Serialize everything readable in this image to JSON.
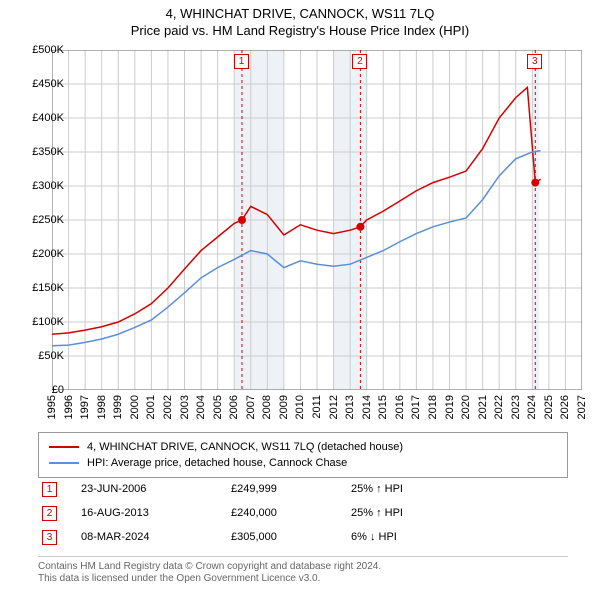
{
  "title_line1": "4, WHINCHAT DRIVE, CANNOCK, WS11 7LQ",
  "title_line2": "Price paid vs. HM Land Registry's House Price Index (HPI)",
  "chart": {
    "type": "line",
    "background_color": "#ffffff",
    "plot_border_color": "#666666",
    "grid_color": "#cccccc",
    "shaded_band_color": "#eef2f7",
    "x_axis": {
      "min_year": 1995,
      "max_year": 2027,
      "ticks": [
        1995,
        1996,
        1997,
        1998,
        1999,
        2000,
        2001,
        2002,
        2003,
        2004,
        2005,
        2006,
        2007,
        2008,
        2009,
        2010,
        2011,
        2012,
        2013,
        2014,
        2015,
        2016,
        2017,
        2018,
        2019,
        2020,
        2021,
        2022,
        2023,
        2024,
        2025,
        2026,
        2027
      ],
      "label_fontsize": 11
    },
    "y_axis": {
      "min": 0,
      "max": 500000,
      "ticks": [
        0,
        50000,
        100000,
        150000,
        200000,
        250000,
        300000,
        350000,
        400000,
        450000,
        500000
      ],
      "tick_labels": [
        "£0",
        "£50K",
        "£100K",
        "£150K",
        "£200K",
        "£250K",
        "£300K",
        "£350K",
        "£400K",
        "£450K",
        "£500K"
      ],
      "label_fontsize": 11
    },
    "shaded_bands": [
      {
        "start": 2006,
        "end": 2009
      },
      {
        "start": 2012,
        "end": 2014
      },
      {
        "start": 2024.0,
        "end": 2024.4
      }
    ],
    "series": [
      {
        "name": "4, WHINCHAT DRIVE, CANNOCK, WS11 7LQ (detached house)",
        "color": "#d40000",
        "line_width": 1.5,
        "points": [
          [
            1995,
            82000
          ],
          [
            1996,
            84000
          ],
          [
            1997,
            88000
          ],
          [
            1998,
            93000
          ],
          [
            1999,
            100000
          ],
          [
            2000,
            112000
          ],
          [
            2001,
            127000
          ],
          [
            2002,
            150000
          ],
          [
            2003,
            178000
          ],
          [
            2004,
            205000
          ],
          [
            2005,
            225000
          ],
          [
            2006,
            245000
          ],
          [
            2006.47,
            249999
          ],
          [
            2007,
            270000
          ],
          [
            2008,
            258000
          ],
          [
            2009,
            228000
          ],
          [
            2010,
            243000
          ],
          [
            2011,
            235000
          ],
          [
            2012,
            230000
          ],
          [
            2013,
            235000
          ],
          [
            2013.62,
            240000
          ],
          [
            2014,
            250000
          ],
          [
            2015,
            263000
          ],
          [
            2016,
            278000
          ],
          [
            2017,
            293000
          ],
          [
            2018,
            305000
          ],
          [
            2019,
            313000
          ],
          [
            2020,
            322000
          ],
          [
            2021,
            355000
          ],
          [
            2022,
            400000
          ],
          [
            2023,
            430000
          ],
          [
            2023.7,
            445000
          ],
          [
            2024.18,
            305000
          ],
          [
            2024.5,
            310000
          ]
        ]
      },
      {
        "name": "HPI: Average price, detached house, Cannock Chase",
        "color": "#5b8fd6",
        "line_width": 1.5,
        "points": [
          [
            1995,
            65000
          ],
          [
            1996,
            66000
          ],
          [
            1997,
            70000
          ],
          [
            1998,
            75000
          ],
          [
            1999,
            82000
          ],
          [
            2000,
            92000
          ],
          [
            2001,
            103000
          ],
          [
            2002,
            122000
          ],
          [
            2003,
            143000
          ],
          [
            2004,
            165000
          ],
          [
            2005,
            180000
          ],
          [
            2006,
            192000
          ],
          [
            2007,
            205000
          ],
          [
            2008,
            200000
          ],
          [
            2009,
            180000
          ],
          [
            2010,
            190000
          ],
          [
            2011,
            185000
          ],
          [
            2012,
            182000
          ],
          [
            2013,
            185000
          ],
          [
            2014,
            195000
          ],
          [
            2015,
            205000
          ],
          [
            2016,
            218000
          ],
          [
            2017,
            230000
          ],
          [
            2018,
            240000
          ],
          [
            2019,
            247000
          ],
          [
            2020,
            253000
          ],
          [
            2021,
            280000
          ],
          [
            2022,
            315000
          ],
          [
            2023,
            340000
          ],
          [
            2024,
            350000
          ],
          [
            2024.5,
            352000
          ]
        ]
      }
    ],
    "sale_markers": [
      {
        "n": 1,
        "year": 2006.47,
        "price": 249999
      },
      {
        "n": 2,
        "year": 2013.62,
        "price": 240000
      },
      {
        "n": 3,
        "year": 2024.18,
        "price": 305000
      }
    ],
    "marker_box_border": "#d40000",
    "marker_box_text_color": "#d40000",
    "marker_dashed_line_color": "#d40000",
    "marker_point_fill": "#d40000"
  },
  "legend": {
    "items": [
      {
        "color": "#d40000",
        "label": "4, WHINCHAT DRIVE, CANNOCK, WS11 7LQ (detached house)"
      },
      {
        "color": "#5b8fd6",
        "label": "HPI: Average price, detached house, Cannock Chase"
      }
    ]
  },
  "sales": [
    {
      "n": "1",
      "date": "23-JUN-2006",
      "price": "£249,999",
      "hpi": "25% ↑ HPI"
    },
    {
      "n": "2",
      "date": "16-AUG-2013",
      "price": "£240,000",
      "hpi": "25% ↑ HPI"
    },
    {
      "n": "3",
      "date": "08-MAR-2024",
      "price": "£305,000",
      "hpi": "6% ↓ HPI"
    }
  ],
  "attribution_line1": "Contains HM Land Registry data © Crown copyright and database right 2024.",
  "attribution_line2": "This data is licensed under the Open Government Licence v3.0."
}
